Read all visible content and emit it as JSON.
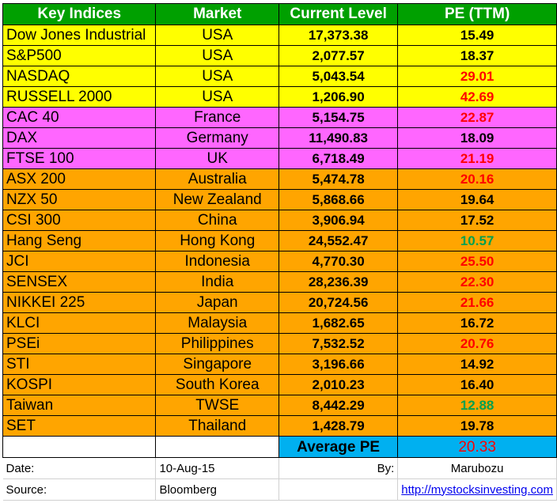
{
  "headers": {
    "index": "Key Indices",
    "market": "Market",
    "level": "Current Level",
    "pe": "PE (TTM)"
  },
  "colors": {
    "header_bg": "#00a000",
    "usa_bg": "#ffff00",
    "europe_bg": "#ff66ff",
    "asia_bg": "#ffa500",
    "average_bg": "#00b0f0",
    "high_pe": "#ff0000",
    "low_pe": "#00a050"
  },
  "rows": [
    {
      "index": "Dow Jones Industrial",
      "market": "USA",
      "level": "17,373.38",
      "pe": "15.49"
    },
    {
      "index": "S&P500",
      "market": "USA",
      "level": "2,077.57",
      "pe": "18.37"
    },
    {
      "index": "NASDAQ",
      "market": "USA",
      "level": "5,043.54",
      "pe": "29.01"
    },
    {
      "index": "RUSSELL 2000",
      "market": "USA",
      "level": "1,206.90",
      "pe": "42.69"
    },
    {
      "index": "CAC 40",
      "market": "France",
      "level": "5,154.75",
      "pe": "22.87"
    },
    {
      "index": "DAX",
      "market": "Germany",
      "level": "11,490.83",
      "pe": "18.09"
    },
    {
      "index": "FTSE 100",
      "market": "UK",
      "level": "6,718.49",
      "pe": "21.19"
    },
    {
      "index": "ASX 200",
      "market": "Australia",
      "level": "5,474.78",
      "pe": "20.16"
    },
    {
      "index": "NZX 50",
      "market": "New Zealand",
      "level": "5,868.66",
      "pe": "19.64"
    },
    {
      "index": "CSI 300",
      "market": "China",
      "level": "3,906.94",
      "pe": "17.52"
    },
    {
      "index": "Hang Seng",
      "market": "Hong Kong",
      "level": "24,552.47",
      "pe": "10.57"
    },
    {
      "index": "JCI",
      "market": "Indonesia",
      "level": "4,770.30",
      "pe": "25.50"
    },
    {
      "index": "SENSEX",
      "market": "India",
      "level": "28,236.39",
      "pe": "22.30"
    },
    {
      "index": "NIKKEI 225",
      "market": "Japan",
      "level": "20,724.56",
      "pe": "21.66"
    },
    {
      "index": "KLCI",
      "market": "Malaysia",
      "level": "1,682.65",
      "pe": "16.72"
    },
    {
      "index": "PSEi",
      "market": "Philippines",
      "level": "7,532.52",
      "pe": "20.76"
    },
    {
      "index": "STI",
      "market": "Singapore",
      "level": "3,196.66",
      "pe": "14.92"
    },
    {
      "index": "KOSPI",
      "market": "South Korea",
      "level": "2,010.23",
      "pe": "16.40"
    },
    {
      "index": "Taiwan",
      "market": "TWSE",
      "level": "8,442.29",
      "pe": "12.88"
    },
    {
      "index": "SET",
      "market": "Thailand",
      "level": "1,428.79",
      "pe": "19.78"
    }
  ],
  "average": {
    "label": "Average PE",
    "value": "20.33"
  },
  "footer": {
    "date_label": "Date:",
    "date_value": "10-Aug-15",
    "by_label": "By:",
    "author": "Marubozu",
    "source_label": "Source:",
    "source_value": "Bloomberg",
    "link": "http://mystocksinvesting.com"
  }
}
